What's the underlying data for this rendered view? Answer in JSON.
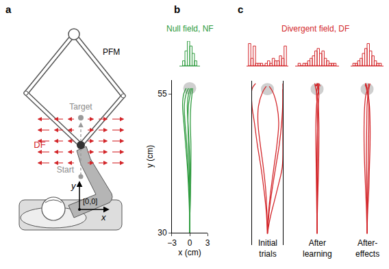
{
  "diagram": {
    "label": "a",
    "texts": {
      "manipulandum": "PFM",
      "target": "Target",
      "field": "DF",
      "start": "Start",
      "y_axis": "y",
      "x_axis": "x",
      "origin": "[0,0]"
    }
  },
  "chart_data": [
    {
      "label": "b",
      "type": "line",
      "title": "Null field, NF",
      "color": "#2e9b3e",
      "x_label": "x (cm)",
      "y_label": "y (cm)",
      "xlim": [
        -3,
        3
      ],
      "ylim": [
        30,
        57.5
      ],
      "xticks": [
        {
          "value": -3,
          "label": "−3"
        },
        0,
        3
      ],
      "yticks": [
        30,
        55
      ],
      "target": {
        "x": 0,
        "y": 56,
        "radius": 1.1
      },
      "series": [
        {
          "x": [
            0,
            0.05,
            0.1,
            0.05,
            -0.1,
            -0.3,
            -0.4,
            -0.2,
            0.1
          ],
          "y": [
            30,
            34,
            38,
            42,
            46,
            50,
            53,
            55,
            56
          ]
        },
        {
          "x": [
            0,
            0,
            -0.1,
            -0.3,
            -0.5,
            -0.8,
            -0.9,
            -0.6,
            -0.2
          ],
          "y": [
            30,
            34,
            38,
            42,
            46,
            50,
            53,
            55,
            56
          ]
        },
        {
          "x": [
            0,
            -0.05,
            -0.2,
            -0.4,
            -0.7,
            -1.0,
            -1.2,
            -1.0,
            -0.6
          ],
          "y": [
            30,
            34,
            38,
            42,
            46,
            50,
            53,
            55,
            56
          ]
        },
        {
          "x": [
            0,
            0.05,
            0.15,
            0.2,
            0.2,
            0.1,
            0.2,
            0.4,
            0.5
          ],
          "y": [
            30,
            34,
            38,
            42,
            46,
            50,
            53,
            55,
            56
          ]
        },
        {
          "x": [
            0,
            0,
            -0.05,
            -0.1,
            -0.2,
            -0.3,
            -0.2,
            0.1,
            0.3
          ],
          "y": [
            30,
            34,
            38,
            42,
            46,
            50,
            53,
            55,
            56
          ]
        }
      ],
      "histogram": {
        "type": "histogram",
        "xlim": [
          -1.7,
          1.7
        ],
        "ylim": [
          0,
          10
        ],
        "bins": [
          -1.2,
          -0.8,
          -0.4,
          0,
          0.4,
          0.8,
          1.2
        ],
        "counts": [
          2,
          6,
          10,
          8,
          5,
          2
        ]
      }
    },
    {
      "label": "c",
      "type": "line",
      "title": "Divergent field, DF",
      "color": "#d3272b",
      "panels": [
        {
          "caption": "Initial trials",
          "xlim": [
            -2.6,
            2.6
          ],
          "ylim": [
            28,
            57.5
          ],
          "tick_labels": false,
          "target": {
            "x": 0,
            "y": 56,
            "radius": 1.1
          },
          "series": [
            {
              "x": [
                0,
                -0.2,
                -0.6,
                -1.1,
                -1.7,
                -2.2,
                -2.6,
                -2.6,
                -2.0
              ],
              "y": [
                30,
                34,
                38,
                42,
                46,
                50,
                53,
                56,
                57
              ]
            },
            {
              "x": [
                0,
                0.3,
                0.8,
                1.4,
                2.0,
                2.4,
                2.6,
                2.6
              ],
              "y": [
                30,
                34,
                38,
                42,
                46,
                50,
                54,
                57
              ]
            },
            {
              "x": [
                0,
                0.2,
                0.6,
                1.1,
                1.6,
                1.9,
                1.6,
                0.9,
                0.3
              ],
              "y": [
                30,
                34,
                38,
                42,
                46,
                50,
                53,
                55.5,
                56.5
              ]
            },
            {
              "x": [
                0,
                -0.1,
                -0.3,
                -0.7,
                -1.2,
                -1.6,
                -1.5,
                -0.8,
                -0.2
              ],
              "y": [
                30,
                34,
                38,
                42,
                46,
                50,
                53,
                55.5,
                56.5
              ]
            },
            {
              "x": [
                0,
                0.5,
                1.2,
                1.9,
                2.5,
                2.6,
                2.6
              ],
              "y": [
                30,
                33,
                36,
                39,
                42,
                48,
                56
              ]
            }
          ],
          "histogram": {
            "type": "histogram",
            "xlim": [
              -3.5,
              3.5
            ],
            "ylim": [
              0,
              10
            ],
            "bins": [
              -3.2,
              -2.8,
              -2.4,
              -2.0,
              -1.6,
              -1.2,
              -0.8,
              -0.4,
              0,
              0.4,
              0.8,
              1.2,
              1.6,
              2.0,
              2.4,
              2.8,
              3.2
            ],
            "counts": [
              9,
              3,
              8,
              1,
              1,
              1,
              0,
              1,
              2,
              1,
              3,
              2,
              2,
              4,
              3,
              8
            ]
          }
        },
        {
          "caption": "After learning",
          "xlim": [
            -2.6,
            2.6
          ],
          "ylim": [
            28,
            57.5
          ],
          "tick_labels": false,
          "target": {
            "x": 0,
            "y": 56,
            "radius": 1.1
          },
          "series": [
            {
              "x": [
                0,
                0,
                0.05,
                0.1,
                0.1,
                0.05,
                0,
                -0.1,
                0,
                0.3,
                0.5
              ],
              "y": [
                30,
                34,
                38,
                42,
                46,
                50,
                53,
                55,
                56,
                57,
                56.5
              ]
            },
            {
              "x": [
                0,
                -0.05,
                -0.1,
                -0.15,
                -0.2,
                -0.2,
                -0.1,
                0.1,
                0.3,
                0.1,
                -0.3
              ],
              "y": [
                30,
                34,
                38,
                42,
                46,
                50,
                53,
                55,
                56,
                57,
                56.5
              ]
            },
            {
              "x": [
                0,
                0.05,
                0.15,
                0.25,
                0.3,
                0.3,
                0.2,
                0,
                -0.2,
                -0.4,
                -0.2
              ],
              "y": [
                30,
                34,
                38,
                42,
                46,
                50,
                53,
                55,
                56,
                57,
                56.5
              ]
            },
            {
              "x": [
                0,
                0,
                -0.05,
                -0.05,
                0,
                0.1,
                0.2,
                0.3,
                0.2,
                0,
                -0.1
              ],
              "y": [
                30,
                34,
                38,
                42,
                46,
                50,
                53,
                55,
                56,
                57,
                56.5
              ]
            }
          ],
          "histogram": {
            "type": "histogram",
            "xlim": [
              -3.7,
              3.7
            ],
            "ylim": [
              0,
              10
            ],
            "bins": [
              -3.2,
              -2.8,
              -2.4,
              -2.0,
              -1.6,
              -1.2,
              -0.8,
              -0.4,
              0,
              0.4,
              0.8,
              1.2,
              1.6,
              2.0,
              2.4,
              2.8,
              3.2
            ],
            "counts": [
              1,
              0,
              1,
              1,
              2,
              3,
              4,
              6,
              7,
              5,
              6,
              3,
              2,
              1,
              1,
              1
            ]
          }
        },
        {
          "caption": "After-effects",
          "xlim": [
            -2.6,
            2.6
          ],
          "ylim": [
            28,
            57.5
          ],
          "tick_labels": false,
          "target": {
            "x": 0,
            "y": 56,
            "radius": 1.1
          },
          "series": [
            {
              "x": [
                0,
                0.1,
                0.3,
                0.4,
                0.5,
                0.5,
                0.4,
                0.2,
                0,
                -0.2,
                -0.3
              ],
              "y": [
                30,
                34,
                38,
                42,
                46,
                50,
                53,
                55,
                56,
                57,
                56.5
              ]
            },
            {
              "x": [
                0,
                -0.1,
                -0.25,
                -0.4,
                -0.5,
                -0.5,
                -0.4,
                -0.2,
                0.1,
                0.3,
                0.2
              ],
              "y": [
                30,
                34,
                38,
                42,
                46,
                50,
                53,
                55,
                56,
                57,
                56.5
              ]
            },
            {
              "x": [
                0,
                0.05,
                0.1,
                0.2,
                0.25,
                0.3,
                0.3,
                0.2,
                0.3,
                0.5,
                0.4
              ],
              "y": [
                30,
                34,
                38,
                42,
                46,
                50,
                53,
                55,
                56,
                57,
                56.5
              ]
            },
            {
              "x": [
                0,
                0,
                -0.05,
                -0.1,
                -0.1,
                -0.05,
                0,
                0.1,
                -0.1,
                -0.3,
                -0.1
              ],
              "y": [
                30,
                34,
                38,
                42,
                46,
                50,
                53,
                55,
                56,
                57,
                56.5
              ]
            }
          ],
          "histogram": {
            "type": "histogram",
            "xlim": [
              -2.8,
              2.8
            ],
            "ylim": [
              0,
              10
            ],
            "bins": [
              -2.4,
              -2.0,
              -1.6,
              -1.2,
              -0.8,
              -0.4,
              0,
              0.4,
              0.8,
              1.2,
              1.6,
              2.0,
              2.4
            ],
            "counts": [
              1,
              1,
              2,
              3,
              5,
              7,
              9,
              6,
              4,
              2,
              1,
              1
            ]
          }
        }
      ]
    }
  ]
}
